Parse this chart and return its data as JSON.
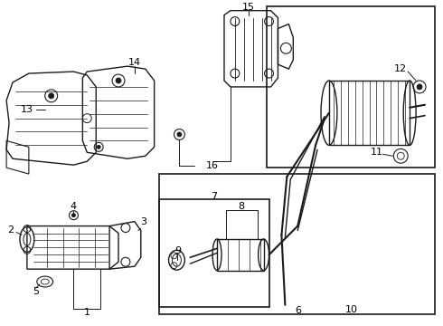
{
  "bg_color": "#ffffff",
  "line_color": "#1a1a1a",
  "text_color": "#000000",
  "fig_width": 4.9,
  "fig_height": 3.6,
  "dpi": 100
}
